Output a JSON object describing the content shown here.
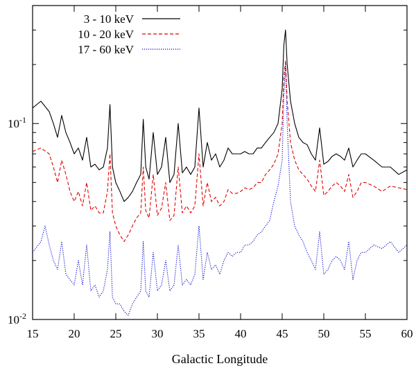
{
  "chart_data": {
    "type": "line",
    "title": "",
    "xlabel": "Galactic Longitude",
    "ylabel": "",
    "xlim": [
      15,
      60
    ],
    "ylim": [
      0.01,
      0.4
    ],
    "yscale": "log",
    "grid": false,
    "legend_position": "top-left",
    "x_ticks": [
      15,
      20,
      25,
      30,
      35,
      40,
      45,
      50,
      55,
      60
    ],
    "x_tick_labels": [
      "15",
      "20",
      "25",
      "30",
      "35",
      "40",
      "45",
      "50",
      "55",
      "60"
    ],
    "y_ticks": [
      {
        "value": 0.01,
        "base": "10",
        "exp": "-2"
      },
      {
        "value": 0.1,
        "base": "10",
        "exp": "-1"
      }
    ],
    "colors": {
      "black": "#000000",
      "red": "#e00000",
      "blue": "#0000cc"
    },
    "series": [
      {
        "name": "3 - 10 keV",
        "color": "#000000",
        "dash": "solid",
        "x": [
          15,
          16,
          17,
          17.5,
          18,
          18.5,
          19,
          19.5,
          20,
          20.5,
          21,
          21.5,
          22,
          22.5,
          23,
          23.5,
          24,
          24.3,
          24.6,
          25,
          25.5,
          26,
          26.5,
          27,
          27.5,
          28,
          28.3,
          28.6,
          29,
          29.5,
          30,
          30.5,
          31,
          31.5,
          32,
          32.5,
          33,
          33.5,
          34,
          34.5,
          35,
          35.5,
          36,
          36.5,
          37,
          37.5,
          38,
          38.5,
          39,
          39.5,
          40,
          40.5,
          41,
          41.5,
          42,
          42.5,
          43,
          43.5,
          44,
          44.5,
          45,
          45.2,
          45.4,
          45.6,
          46,
          46.5,
          47,
          47.5,
          48,
          48.5,
          49,
          49.5,
          50,
          50.5,
          51,
          51.5,
          52,
          52.5,
          53,
          53.5,
          54,
          54.5,
          55,
          56,
          57,
          58,
          59,
          60
        ],
        "y": [
          0.12,
          0.13,
          0.115,
          0.1,
          0.085,
          0.11,
          0.09,
          0.08,
          0.07,
          0.075,
          0.065,
          0.085,
          0.06,
          0.062,
          0.058,
          0.06,
          0.075,
          0.125,
          0.06,
          0.05,
          0.045,
          0.04,
          0.042,
          0.045,
          0.05,
          0.055,
          0.105,
          0.06,
          0.052,
          0.09,
          0.055,
          0.06,
          0.085,
          0.05,
          0.055,
          0.1,
          0.056,
          0.06,
          0.055,
          0.06,
          0.12,
          0.06,
          0.08,
          0.065,
          0.07,
          0.06,
          0.065,
          0.075,
          0.07,
          0.07,
          0.07,
          0.072,
          0.07,
          0.07,
          0.075,
          0.075,
          0.08,
          0.085,
          0.09,
          0.1,
          0.15,
          0.25,
          0.3,
          0.2,
          0.13,
          0.1,
          0.085,
          0.08,
          0.078,
          0.07,
          0.065,
          0.095,
          0.062,
          0.064,
          0.068,
          0.07,
          0.068,
          0.065,
          0.075,
          0.06,
          0.065,
          0.07,
          0.07,
          0.065,
          0.06,
          0.06,
          0.055,
          0.058
        ]
      },
      {
        "name": "10 - 20 keV",
        "color": "#e00000",
        "dash": "dashed",
        "x": [
          15,
          16,
          17,
          17.5,
          18,
          18.5,
          19,
          19.5,
          20,
          20.5,
          21,
          21.5,
          22,
          22.5,
          23,
          23.5,
          24,
          24.3,
          24.6,
          25,
          25.5,
          26,
          26.5,
          27,
          27.5,
          28,
          28.3,
          28.6,
          29,
          29.5,
          30,
          30.5,
          31,
          31.5,
          32,
          32.5,
          33,
          33.5,
          34,
          34.5,
          35,
          35.5,
          36,
          36.5,
          37,
          37.5,
          38,
          38.5,
          39,
          39.5,
          40,
          40.5,
          41,
          41.5,
          42,
          42.5,
          43,
          43.5,
          44,
          44.5,
          45,
          45.2,
          45.4,
          45.6,
          46,
          46.5,
          47,
          47.5,
          48,
          48.5,
          49,
          49.5,
          50,
          50.5,
          51,
          51.5,
          52,
          52.5,
          53,
          53.5,
          54,
          54.5,
          55,
          56,
          57,
          58,
          59,
          60
        ],
        "y": [
          0.072,
          0.075,
          0.07,
          0.06,
          0.05,
          0.065,
          0.055,
          0.045,
          0.04,
          0.045,
          0.038,
          0.05,
          0.036,
          0.038,
          0.035,
          0.035,
          0.045,
          0.07,
          0.035,
          0.03,
          0.027,
          0.025,
          0.027,
          0.03,
          0.033,
          0.035,
          0.06,
          0.036,
          0.033,
          0.055,
          0.034,
          0.037,
          0.05,
          0.032,
          0.034,
          0.06,
          0.035,
          0.038,
          0.035,
          0.038,
          0.07,
          0.038,
          0.05,
          0.04,
          0.042,
          0.038,
          0.04,
          0.046,
          0.044,
          0.044,
          0.045,
          0.047,
          0.046,
          0.047,
          0.05,
          0.05,
          0.055,
          0.058,
          0.062,
          0.07,
          0.1,
          0.17,
          0.21,
          0.13,
          0.08,
          0.065,
          0.058,
          0.055,
          0.052,
          0.048,
          0.045,
          0.065,
          0.043,
          0.045,
          0.048,
          0.05,
          0.048,
          0.045,
          0.055,
          0.042,
          0.045,
          0.05,
          0.05,
          0.048,
          0.045,
          0.048,
          0.047,
          0.046
        ]
      },
      {
        "name": "17 - 60 keV",
        "color": "#0000cc",
        "dash": "dotted",
        "x": [
          15,
          16,
          16.5,
          17,
          17.5,
          18,
          18.5,
          19,
          19.5,
          20,
          20.5,
          21,
          21.5,
          22,
          22.5,
          23,
          23.5,
          24,
          24.3,
          24.6,
          25,
          25.5,
          26,
          26.5,
          27,
          27.5,
          28,
          28.3,
          28.6,
          29,
          29.5,
          30,
          30.5,
          31,
          31.5,
          32,
          32.5,
          33,
          33.5,
          34,
          34.5,
          35,
          35.5,
          36,
          36.5,
          37,
          37.5,
          38,
          38.5,
          39,
          39.5,
          40,
          40.5,
          41,
          41.5,
          42,
          42.5,
          43,
          43.5,
          44,
          44.5,
          45,
          45.2,
          45.4,
          45.6,
          46,
          46.5,
          47,
          47.5,
          48,
          48.5,
          49,
          49.5,
          50,
          50.5,
          51,
          51.5,
          52,
          52.5,
          53,
          53.5,
          54,
          54.5,
          55,
          56,
          57,
          58,
          59,
          60
        ],
        "y": [
          0.022,
          0.025,
          0.03,
          0.024,
          0.02,
          0.018,
          0.025,
          0.017,
          0.016,
          0.015,
          0.02,
          0.015,
          0.024,
          0.014,
          0.015,
          0.013,
          0.014,
          0.018,
          0.028,
          0.013,
          0.012,
          0.012,
          0.011,
          0.0105,
          0.012,
          0.013,
          0.014,
          0.025,
          0.014,
          0.013,
          0.022,
          0.014,
          0.015,
          0.02,
          0.014,
          0.015,
          0.024,
          0.015,
          0.016,
          0.015,
          0.017,
          0.03,
          0.016,
          0.022,
          0.018,
          0.019,
          0.017,
          0.02,
          0.022,
          0.021,
          0.022,
          0.022,
          0.024,
          0.024,
          0.025,
          0.027,
          0.028,
          0.03,
          0.032,
          0.04,
          0.048,
          0.065,
          0.14,
          0.2,
          0.1,
          0.04,
          0.03,
          0.027,
          0.025,
          0.022,
          0.02,
          0.018,
          0.028,
          0.017,
          0.018,
          0.02,
          0.021,
          0.02,
          0.018,
          0.025,
          0.016,
          0.02,
          0.022,
          0.022,
          0.024,
          0.023,
          0.025,
          0.022,
          0.024
        ]
      }
    ]
  }
}
